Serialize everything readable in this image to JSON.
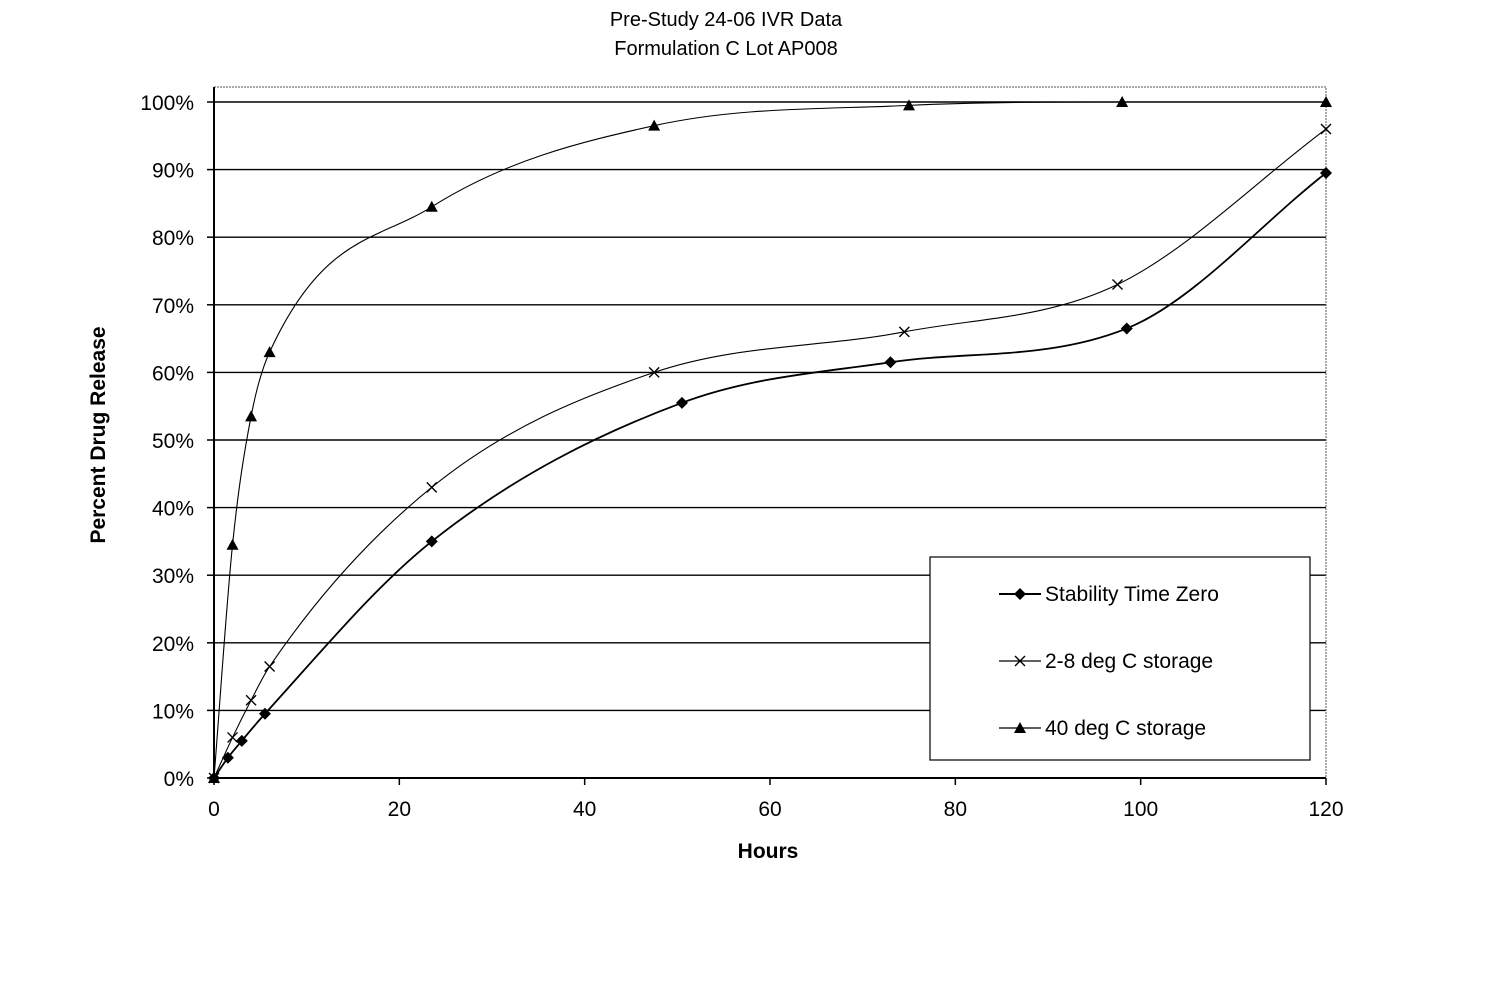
{
  "chart_data": {
    "type": "line",
    "title": "Pre-Study 24-06 IVR Data",
    "subtitle": "Formulation C Lot AP008",
    "xlabel": "Hours",
    "ylabel": "Percent Drug Release",
    "xlim": [
      0,
      120
    ],
    "ylim": [
      0,
      100
    ],
    "xticks": [
      0,
      20,
      40,
      60,
      80,
      100,
      120
    ],
    "xtick_labels": [
      "0",
      "20",
      "40",
      "60",
      "80",
      "100",
      "120"
    ],
    "yticks": [
      0,
      10,
      20,
      30,
      40,
      50,
      60,
      70,
      80,
      90,
      100
    ],
    "ytick_labels": [
      "0%",
      "10%",
      "20%",
      "30%",
      "40%",
      "50%",
      "60%",
      "70%",
      "80%",
      "90%",
      "100%"
    ],
    "grid": "horizontal",
    "legend_position": "bottom-right",
    "series": [
      {
        "name": "Stability Time Zero",
        "marker": "diamond",
        "x": [
          0,
          1.5,
          3,
          5.5,
          23.5,
          50.5,
          73,
          98.5,
          120
        ],
        "values": [
          0,
          3,
          5.5,
          9.5,
          35,
          55.5,
          61.5,
          66.5,
          89.5
        ]
      },
      {
        "name": "2-8 deg C storage",
        "marker": "x",
        "x": [
          0,
          2,
          4,
          6,
          23.5,
          47.5,
          74.5,
          97.5,
          120
        ],
        "values": [
          0,
          6,
          11.5,
          16.5,
          43,
          60,
          66,
          73,
          96
        ]
      },
      {
        "name": "40 deg C storage",
        "marker": "triangle",
        "x": [
          0,
          2,
          4,
          6,
          23.5,
          47.5,
          75,
          98,
          120
        ],
        "values": [
          0,
          34.5,
          53.5,
          63,
          84.5,
          96.5,
          99.5,
          100,
          100
        ]
      }
    ]
  }
}
